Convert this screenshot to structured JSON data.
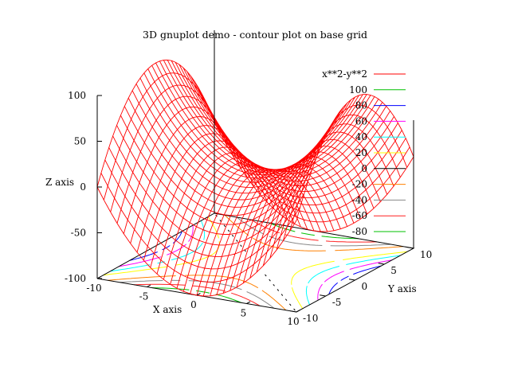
{
  "chart_data": {
    "type": "surface-contour",
    "title": "3D gnuplot demo - contour plot on base grid",
    "xlabel": "X axis",
    "ylabel": "Y axis",
    "zlabel": "Z axis",
    "function": "x**2-y**2",
    "xlim": [
      -10,
      10
    ],
    "ylim": [
      -10,
      10
    ],
    "zlim": [
      -100,
      100
    ],
    "x_ticks": [
      "-10",
      "-5",
      "0",
      "5",
      "10"
    ],
    "y_ticks": [
      "-10",
      "-5",
      "0",
      "5",
      "10"
    ],
    "z_ticks": [
      "100",
      "50",
      "0",
      "-50",
      "-100"
    ],
    "surface_grid": 30,
    "surface_color": "#ff0000",
    "grid": false,
    "legend_position": "top-right",
    "legend": [
      {
        "label": "x**2-y**2",
        "level": null,
        "color": "#ff0000"
      },
      {
        "label": "100",
        "level": 100,
        "color": "#00c000"
      },
      {
        "label": "80",
        "level": 80,
        "color": "#0000ff"
      },
      {
        "label": "60",
        "level": 60,
        "color": "#ff00ff"
      },
      {
        "label": "40",
        "level": 40,
        "color": "#00ffff"
      },
      {
        "label": "20",
        "level": 20,
        "color": "#ffff00"
      },
      {
        "label": "0",
        "level": 0,
        "color": "#000000"
      },
      {
        "label": "-20",
        "level": -20,
        "color": "#ff8000"
      },
      {
        "label": "-40",
        "level": -40,
        "color": "#888888"
      },
      {
        "label": "-60",
        "level": -60,
        "color": "#ff2020"
      },
      {
        "label": "-80",
        "level": -80,
        "color": "#00c000"
      }
    ]
  }
}
